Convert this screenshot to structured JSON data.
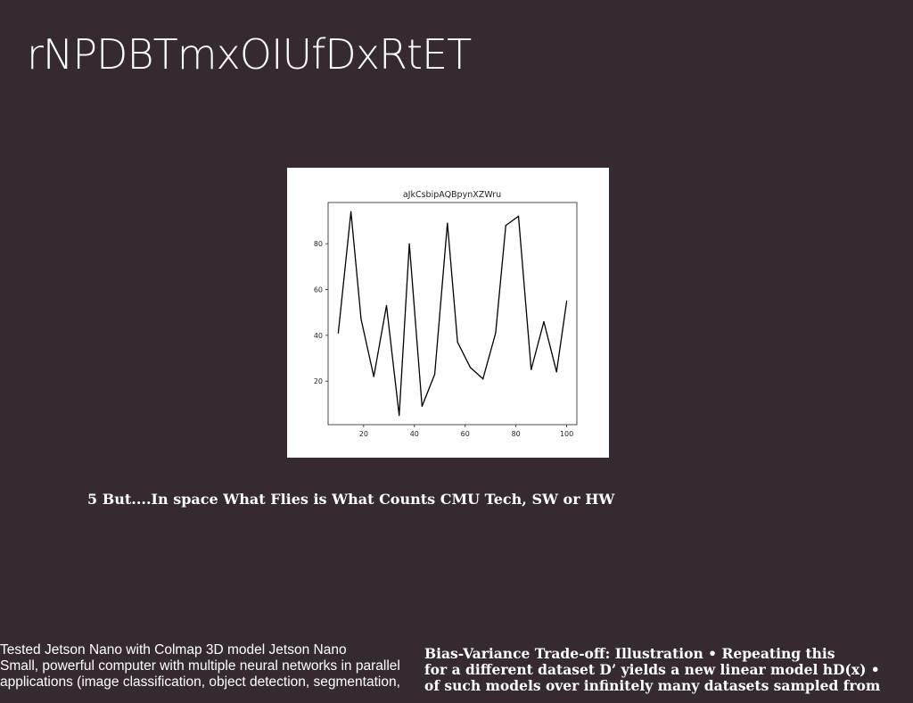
{
  "slide": {
    "title": "rNPDBTmxOIUfDxRtET",
    "subtitle": "5 But....In space What Flies is What Counts CMU Tech, SW or HW",
    "left_note_lines": [
      "Tested Jetson Nano with Colmap 3D model Jetson Nano",
      "Small, powerful computer with multiple neural networks in parallel",
      "applications (image classification, object detection, segmentation,"
    ],
    "right_note_lines": [
      "Bias-Variance Trade-off: Illustration • Repeating this",
      "for a different dataset D’ yields a new linear model hD(x) •",
      "of such models over infinitely many datasets sampled from"
    ]
  },
  "chart_data": {
    "type": "line",
    "title": "aJkCsbipAQBpynXZWru",
    "xlabel": "",
    "ylabel": "",
    "x": [
      10,
      15,
      19,
      24,
      29,
      34,
      38,
      43,
      48,
      53,
      57,
      62,
      67,
      72,
      76,
      81,
      86,
      91,
      96,
      100
    ],
    "series": [
      {
        "values": [
          41,
          94,
          47,
          22,
          53,
          5,
          80,
          9,
          23,
          89,
          37,
          26,
          21,
          41,
          88,
          92,
          25,
          46,
          24,
          55
        ],
        "color": "#000000"
      }
    ],
    "xlim": [
      6,
      104
    ],
    "ylim": [
      1,
      98
    ],
    "xticks": [
      20,
      40,
      60,
      80,
      100
    ],
    "yticks": [
      20,
      40,
      60,
      80
    ],
    "grid": false,
    "background": "#ffffff"
  },
  "colors": {
    "page_background": "#352a31",
    "text": "#ffffff",
    "plot_line": "#000000"
  }
}
